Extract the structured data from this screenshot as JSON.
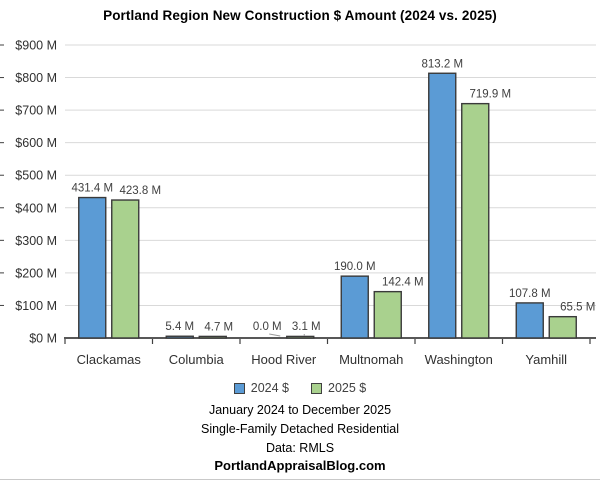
{
  "title": "Portland Region New Construction $ Amount (2024 vs. 2025)",
  "chart_data": {
    "type": "bar",
    "title": "Portland Region New Construction $ Amount (2024 vs. 2025)",
    "categories": [
      "Clackamas",
      "Columbia",
      "Hood River",
      "Multnomah",
      "Washington",
      "Yamhill"
    ],
    "series": [
      {
        "name": "2024 $",
        "color": "#5B9BD5",
        "values": [
          431.4,
          5.4,
          0.0,
          190.0,
          813.2,
          107.8
        ],
        "labels": [
          "431.4 M",
          "5.4 M",
          "0.0 M",
          "190.0 M",
          "813.2 M",
          "107.8 M"
        ]
      },
      {
        "name": "2025 $",
        "color": "#A9D18E",
        "values": [
          423.8,
          4.7,
          3.1,
          142.4,
          719.9,
          65.5
        ],
        "labels": [
          "423.8 M",
          "4.7 M",
          "3.1 M",
          "142.4 M",
          "719.9 M",
          "65.5 M"
        ]
      }
    ],
    "unit": "M USD",
    "xlabel": "",
    "ylabel": "",
    "ylim": [
      0,
      900
    ],
    "y_tick_step": 100,
    "y_tick_labels": [
      "$0 M",
      "$100 M",
      "$200 M",
      "$300 M",
      "$400 M",
      "$500 M",
      "$600 M",
      "$700 M",
      "$800 M",
      "$900 M"
    ],
    "grid": true,
    "legend_position": "bottom",
    "leader_points": [
      {
        "series": 0,
        "category_index": 2
      },
      {
        "series": 1,
        "category_index": 2
      }
    ]
  },
  "legend": {
    "items": [
      {
        "label": "2024 $",
        "color": "#5B9BD5"
      },
      {
        "label": "2025 $",
        "color": "#A9D18E"
      }
    ]
  },
  "footer": {
    "line1": "January 2024 to December 2025",
    "line2": "Single-Family Detached Residential",
    "line3": "Data: RMLS",
    "line4": "PortlandAppraisalBlog.com"
  },
  "colors": {
    "bar_2024": "#5B9BD5",
    "bar_2025": "#A9D18E",
    "bar_border": "#3A3A3A",
    "gridline": "#D9D9D9",
    "axis": "#404040",
    "label_text": "#404040"
  }
}
